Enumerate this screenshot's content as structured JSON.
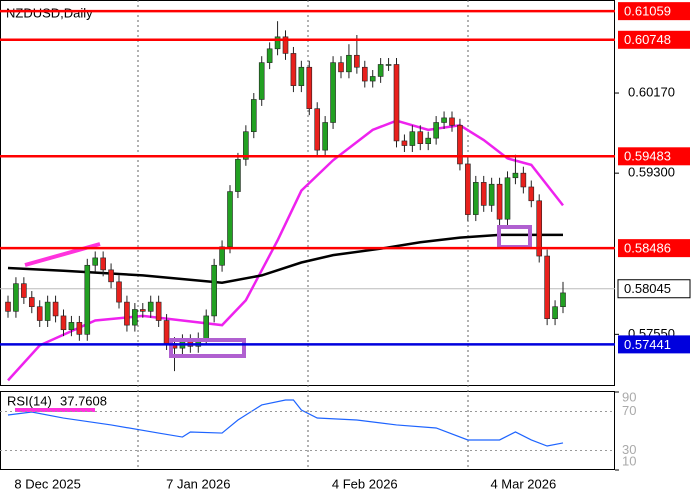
{
  "chart_data": [
    {
      "type": "candlestick",
      "title": "NZDUSD,Daily",
      "categories": [
        null,
        null,
        null,
        null,
        null,
        "8 Dec 2025",
        null,
        null,
        null,
        null,
        null,
        null,
        null,
        null,
        null,
        null,
        null,
        null,
        null,
        null,
        null,
        null,
        null,
        null,
        "7 Jan 2026",
        null,
        null,
        null,
        null,
        null,
        null,
        null,
        null,
        null,
        null,
        null,
        null,
        null,
        null,
        null,
        null,
        null,
        null,
        null,
        null,
        "4 Feb 2026",
        null,
        null,
        null,
        null,
        null,
        null,
        null,
        null,
        null,
        null,
        null,
        null,
        null,
        null,
        null,
        null,
        null,
        null,
        null,
        "4 Mar 2026",
        null,
        null,
        null,
        null,
        null
      ],
      "open": [
        0.579,
        0.578,
        0.581,
        0.5795,
        0.5785,
        0.577,
        0.579,
        0.5775,
        0.576,
        0.5768,
        0.5755,
        0.583,
        0.5838,
        0.5825,
        0.5812,
        0.579,
        0.5765,
        0.5782,
        0.578,
        0.579,
        0.577,
        0.5745,
        0.574,
        0.5748,
        0.5742,
        0.575,
        0.5775,
        0.583,
        0.585,
        0.591,
        0.5945,
        0.5975,
        0.601,
        0.605,
        0.6065,
        0.6078,
        0.606,
        0.6025,
        0.6045,
        0.6,
        0.5955,
        0.5985,
        0.605,
        0.604,
        0.6058,
        0.6045,
        0.603,
        0.6035,
        0.6048,
        0.6048,
        0.5965,
        0.596,
        0.5975,
        0.5962,
        0.5968,
        0.5985,
        0.599,
        0.5982,
        0.594,
        0.5885,
        0.592,
        0.5895,
        0.5918,
        0.588,
        0.5925,
        0.593,
        0.5915,
        0.59,
        0.584,
        0.5772,
        0.5785
      ],
      "high": [
        0.5797,
        0.5817,
        0.5817,
        0.5802,
        0.5792,
        0.5797,
        0.5797,
        0.5782,
        0.5775,
        0.5775,
        0.5837,
        0.5845,
        0.5845,
        0.5832,
        0.5819,
        0.5797,
        0.5789,
        0.5789,
        0.5797,
        0.5797,
        0.5777,
        0.5752,
        0.5755,
        0.5755,
        0.5757,
        0.5782,
        0.5837,
        0.5857,
        0.5917,
        0.5952,
        0.5982,
        0.6017,
        0.6057,
        0.6072,
        0.6095,
        0.6085,
        0.6067,
        0.6052,
        0.6052,
        0.6007,
        0.5992,
        0.6057,
        0.6057,
        0.607,
        0.608,
        0.6052,
        0.6042,
        0.6055,
        0.6055,
        0.6055,
        0.5972,
        0.5982,
        0.5982,
        0.5975,
        0.5992,
        0.5997,
        0.5997,
        0.5989,
        0.5947,
        0.5927,
        0.5927,
        0.5925,
        0.5925,
        0.5932,
        0.595,
        0.5937,
        0.5922,
        0.5907,
        0.5847,
        0.5792,
        0.5812
      ],
      "low": [
        0.5773,
        0.5773,
        0.5788,
        0.5778,
        0.5763,
        0.5763,
        0.5768,
        0.5753,
        0.5753,
        0.5748,
        0.5748,
        0.5823,
        0.5818,
        0.5805,
        0.5783,
        0.5758,
        0.5758,
        0.5773,
        0.5773,
        0.5763,
        0.5738,
        0.5715,
        0.5733,
        0.5735,
        0.5735,
        0.5743,
        0.5768,
        0.5823,
        0.5843,
        0.5903,
        0.5938,
        0.5968,
        0.6003,
        0.6043,
        0.6058,
        0.6053,
        0.6018,
        0.6018,
        0.5993,
        0.5948,
        0.5948,
        0.5978,
        0.6033,
        0.6033,
        0.6038,
        0.6023,
        0.6023,
        0.6028,
        0.6041,
        0.5958,
        0.5953,
        0.5953,
        0.5955,
        0.5955,
        0.5961,
        0.5978,
        0.5975,
        0.5933,
        0.5878,
        0.5878,
        0.5888,
        0.5888,
        0.5873,
        0.5873,
        0.5918,
        0.5908,
        0.5893,
        0.5833,
        0.5765,
        0.5765,
        0.5778
      ],
      "close": [
        0.578,
        0.581,
        0.5795,
        0.5785,
        0.577,
        0.579,
        0.5775,
        0.576,
        0.5768,
        0.5755,
        0.583,
        0.5838,
        0.5825,
        0.5812,
        0.579,
        0.5765,
        0.5782,
        0.578,
        0.579,
        0.577,
        0.5745,
        0.574,
        0.5748,
        0.5742,
        0.575,
        0.5775,
        0.583,
        0.585,
        0.591,
        0.5945,
        0.5975,
        0.601,
        0.605,
        0.6065,
        0.6078,
        0.606,
        0.6025,
        0.6045,
        0.6,
        0.5955,
        0.5985,
        0.605,
        0.604,
        0.6058,
        0.6045,
        0.603,
        0.6035,
        0.6048,
        0.6048,
        0.5965,
        0.596,
        0.5975,
        0.5962,
        0.5968,
        0.5985,
        0.599,
        0.5982,
        0.594,
        0.5885,
        0.592,
        0.5895,
        0.5918,
        0.588,
        0.5925,
        0.593,
        0.5915,
        0.59,
        0.584,
        0.5772,
        0.5785,
        0.58
      ],
      "up_color": "#22a022",
      "down_color": "#e8211d",
      "ylim": [
        0.57,
        0.6118
      ],
      "yticks": [
        {
          "value": 0.6017,
          "label": "0.60170"
        },
        {
          "value": 0.593,
          "label": "0.59300"
        },
        {
          "value": 0.5755,
          "label": "0.57550"
        }
      ],
      "lines": [
        {
          "color": "#ee22ee",
          "x": [
            0,
            4,
            11,
            17,
            22,
            27,
            30,
            34,
            37,
            41,
            46,
            49,
            53,
            57,
            60,
            63,
            66,
            70
          ],
          "values": [
            0.5705,
            0.5743,
            0.577,
            0.5775,
            0.577,
            0.5765,
            0.5792,
            0.5857,
            0.5911,
            0.5944,
            0.5977,
            0.5987,
            0.5977,
            0.5982,
            0.5966,
            0.5946,
            0.5939,
            0.5895
          ]
        },
        {
          "color": "#000000",
          "x": [
            0,
            7,
            17,
            27,
            32,
            37,
            41,
            47,
            52,
            57,
            62,
            70
          ],
          "values": [
            0.5827,
            0.5824,
            0.5819,
            0.5811,
            0.5819,
            0.5833,
            0.5841,
            0.5848,
            0.5855,
            0.586,
            0.5863,
            0.5863
          ]
        }
      ],
      "levels": [
        {
          "value": 0.61059,
          "color": "#ff0000"
        },
        {
          "value": 0.60748,
          "color": "#ff0000"
        },
        {
          "value": 0.59483,
          "color": "#ff0000"
        },
        {
          "value": 0.58486,
          "color": "#ff0000"
        },
        {
          "value": 0.57441,
          "color": "#0000dd"
        }
      ],
      "last_price": 0.58045
    },
    {
      "type": "line",
      "title": "RSI(14)",
      "last_value": 37.7608,
      "color": "#1e64ff",
      "x": [
        0,
        3,
        7,
        13,
        19,
        22,
        23,
        27,
        29,
        32,
        35,
        36,
        37,
        39,
        44,
        49,
        54,
        58,
        62,
        64,
        66,
        68,
        70
      ],
      "values": [
        66.4,
        69.5,
        63.3,
        56.2,
        47.9,
        43.8,
        49.0,
        47.9,
        61.3,
        76.7,
        81.8,
        81.8,
        71.5,
        63.3,
        61.3,
        56.2,
        53.1,
        40.8,
        40.8,
        49.0,
        40.8,
        34.6,
        37.76
      ],
      "ylim": [
        10,
        90
      ],
      "yticks": [
        90,
        70,
        30,
        10
      ]
    }
  ]
}
